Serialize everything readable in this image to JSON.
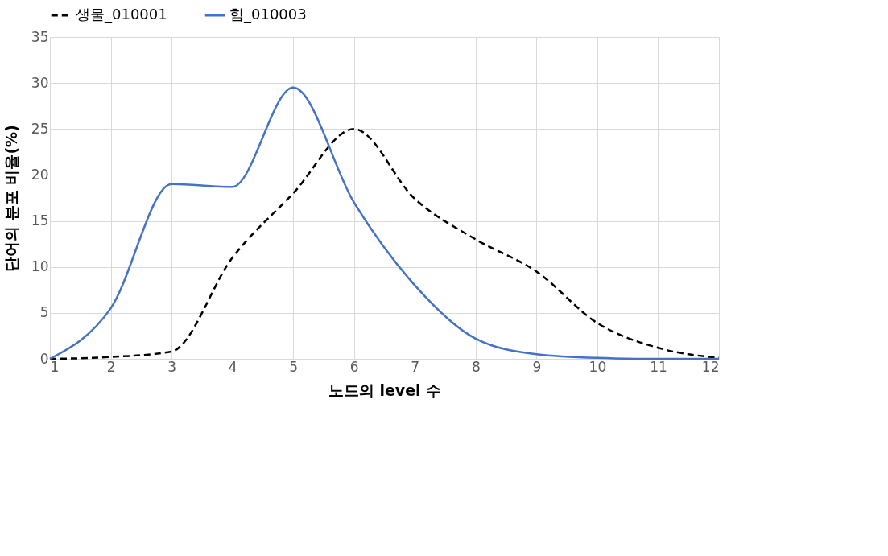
{
  "chart_data": {
    "type": "line",
    "xlabel": "노드의 level 수",
    "ylabel": "단어의 분포 비율(%)",
    "x": [
      1,
      2,
      3,
      4,
      5,
      6,
      7,
      8,
      9,
      10,
      11,
      12
    ],
    "series": [
      {
        "name": "생물_010001",
        "color": "#000000",
        "line_style": "dashed",
        "values": [
          0,
          0.2,
          0.8,
          11.0,
          18.0,
          25.0,
          17.4,
          13.0,
          9.5,
          3.9,
          1.2,
          0.1
        ]
      },
      {
        "name": "힘_010003",
        "color": "#4472c4",
        "line_style": "solid",
        "values": [
          0,
          5.5,
          19.0,
          18.7,
          29.5,
          17.0,
          8.0,
          2.2,
          0.5,
          0.1,
          0,
          0
        ]
      }
    ],
    "xlim": [
      1,
      12
    ],
    "xticks": [
      1,
      2,
      3,
      4,
      5,
      6,
      7,
      8,
      9,
      10,
      11,
      12
    ],
    "ylim": [
      0,
      35
    ],
    "yticks": [
      0,
      5,
      10,
      15,
      20,
      25,
      30,
      35
    ],
    "grid": true,
    "legend": "top"
  }
}
